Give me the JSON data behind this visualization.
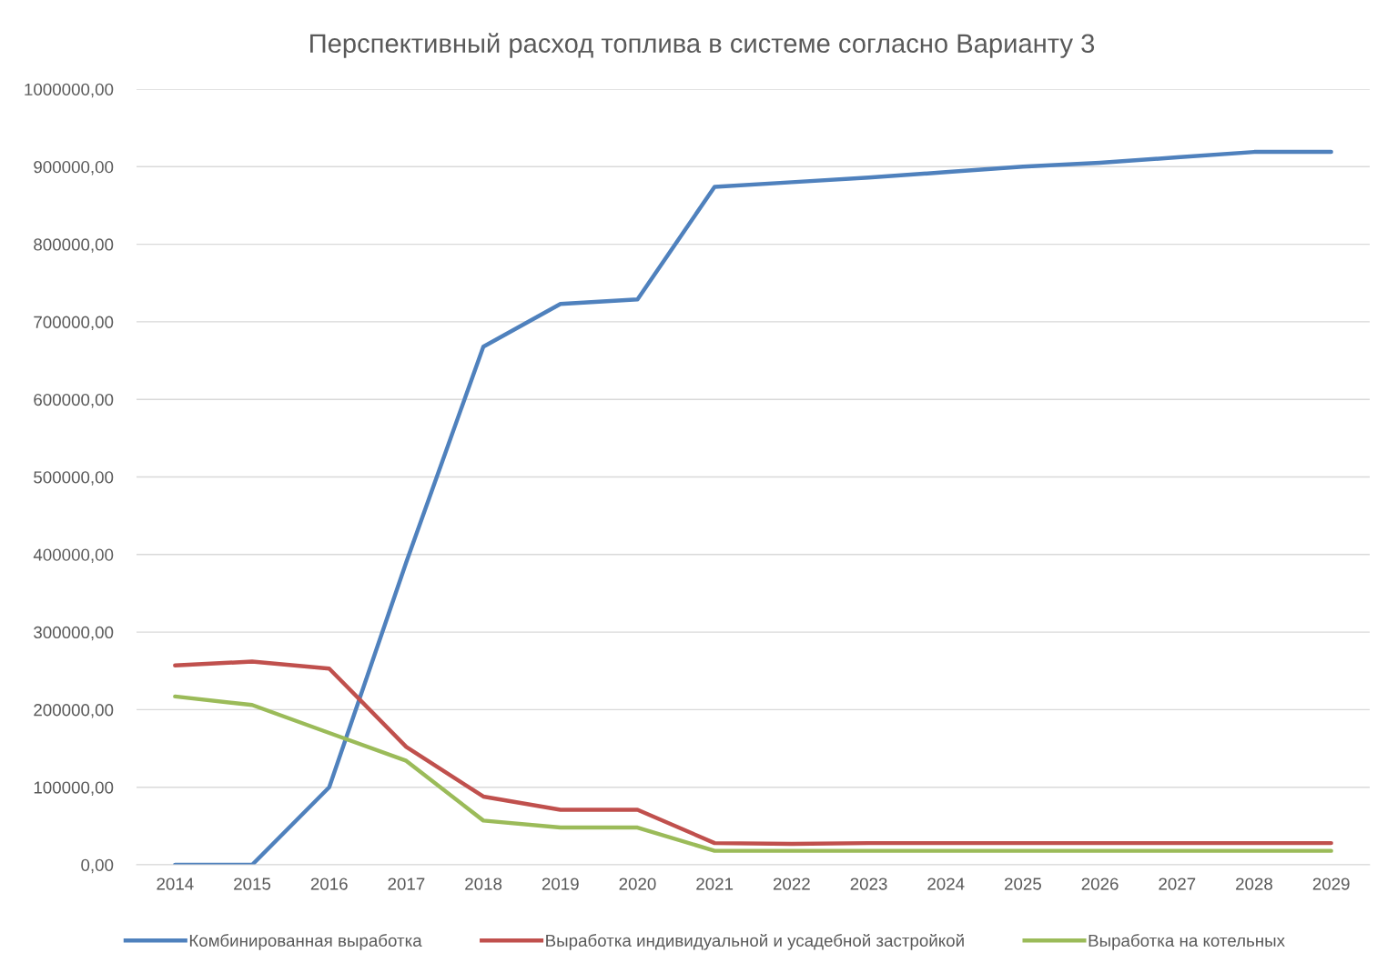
{
  "chart_data": {
    "type": "line",
    "title": "Перспективный расход топлива в системе согласно Варианту 3",
    "categories": [
      "2014",
      "2015",
      "2016",
      "2017",
      "2018",
      "2019",
      "2020",
      "2021",
      "2022",
      "2023",
      "2024",
      "2025",
      "2026",
      "2027",
      "2028",
      "2029"
    ],
    "series": [
      {
        "name": "Комбинированная выработка",
        "color": "#4f81bd",
        "values": [
          0,
          0,
          100000,
          390000,
          668000,
          723000,
          729000,
          874000,
          880000,
          886000,
          893000,
          900000,
          905000,
          912000,
          919000,
          919000
        ]
      },
      {
        "name": "Выработка индивидуальной и усадебной застройкой",
        "color": "#c0504d",
        "values": [
          257000,
          262000,
          253000,
          152000,
          88000,
          71000,
          71000,
          28000,
          27000,
          28000,
          28000,
          28000,
          28000,
          28000,
          28000,
          28000
        ]
      },
      {
        "name": "Выработка на котельных",
        "color": "#9bbb59",
        "values": [
          217000,
          206000,
          170000,
          134000,
          57000,
          48000,
          48000,
          18000,
          18000,
          18000,
          18000,
          18000,
          18000,
          18000,
          18000,
          18000
        ]
      }
    ],
    "ylim": [
      0,
      1000000
    ],
    "yticks": [
      {
        "value": 0,
        "label": "0,00"
      },
      {
        "value": 100000,
        "label": "100000,00"
      },
      {
        "value": 200000,
        "label": "200000,00"
      },
      {
        "value": 300000,
        "label": "300000,00"
      },
      {
        "value": 400000,
        "label": "400000,00"
      },
      {
        "value": 500000,
        "label": "500000,00"
      },
      {
        "value": 600000,
        "label": "600000,00"
      },
      {
        "value": 700000,
        "label": "700000,00"
      },
      {
        "value": 800000,
        "label": "800000,00"
      },
      {
        "value": 900000,
        "label": "900000,00"
      },
      {
        "value": 1000000,
        "label": "1000000,00"
      }
    ],
    "grid": "y",
    "legend": "bottom",
    "marker": "none",
    "line_style": "solid"
  }
}
